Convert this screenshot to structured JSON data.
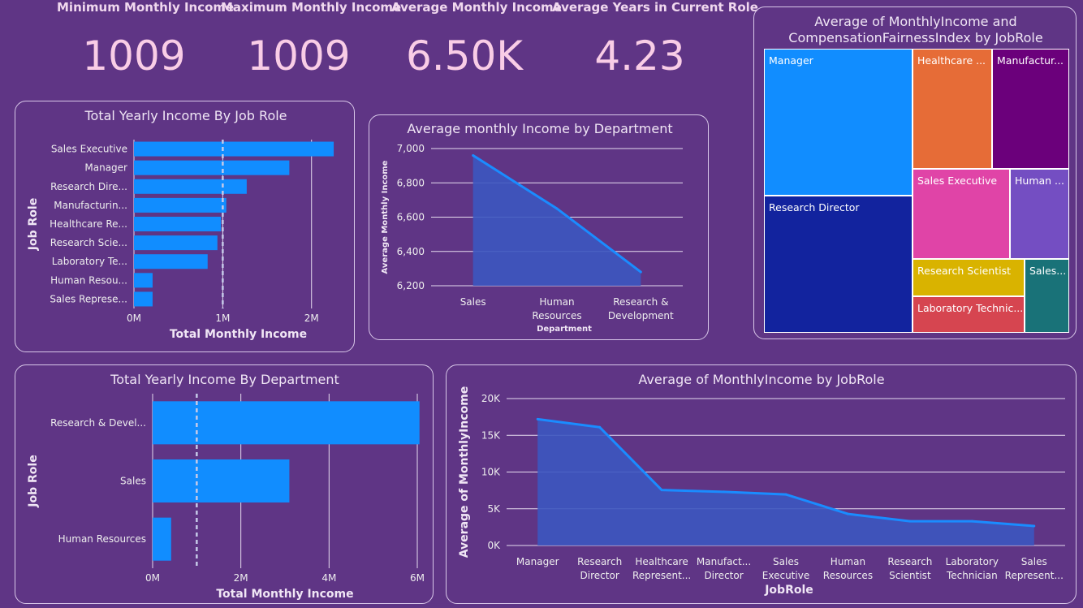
{
  "kpis": [
    {
      "label": "Minimum Monthly Income",
      "value": "1009"
    },
    {
      "label": "Maximum Monthly Income",
      "value": "1009"
    },
    {
      "label": "Average Monthly Income",
      "value": "6.50K"
    },
    {
      "label": "Average Years in Current Role",
      "value": "4.23"
    }
  ],
  "colors": {
    "bar": "#118dff",
    "line": "#1a8cff",
    "area": "#3c57c0",
    "grid": "#e6dcef",
    "dashed": "#c5c9e8",
    "background": "#5f3585"
  },
  "chart_data": [
    {
      "type": "bar",
      "title": "Total Yearly Income By Job Role",
      "xlabel": "Total Monthly Income",
      "ylabel": "Job Role",
      "categories": [
        "Sales Executive",
        "Manager",
        "Research Dire...",
        "Manufacturin...",
        "Healthcare Re...",
        "Research Scie...",
        "Laboratory Te...",
        "Human Resou...",
        "Sales Represe..."
      ],
      "values": [
        2250000,
        1750000,
        1270000,
        1040000,
        980000,
        940000,
        830000,
        210000,
        210000
      ],
      "xticks": [
        {
          "value": 0,
          "label": "0M"
        },
        {
          "value": 1000000,
          "label": "1M"
        },
        {
          "value": 2000000,
          "label": "2M"
        }
      ],
      "xlim": [
        0,
        2350000
      ],
      "average_line": 1000000,
      "grid": true
    },
    {
      "type": "area",
      "title": "Average monthly Income by Department",
      "xlabel": "Department",
      "ylabel": "Average Monthly Income",
      "categories": [
        "Sales",
        "Human Resources",
        "Research & Development"
      ],
      "values": [
        6960,
        6650,
        6280
      ],
      "yticks": [
        {
          "value": 6200,
          "label": "6,200"
        },
        {
          "value": 6400,
          "label": "6,400"
        },
        {
          "value": 6600,
          "label": "6,600"
        },
        {
          "value": 6800,
          "label": "6,800"
        },
        {
          "value": 7000,
          "label": "7,000"
        }
      ],
      "ylim": [
        6200,
        7000
      ],
      "grid": true
    },
    {
      "type": "treemap",
      "title": "Average of MonthlyIncome and CompensationFairnessIndex by JobRole",
      "items": [
        {
          "label": "Manager",
          "color": "#118dff"
        },
        {
          "label": "Research Director",
          "color": "#12239e"
        },
        {
          "label": "Healthcare ...",
          "color": "#e66c37"
        },
        {
          "label": "Manufactur...",
          "color": "#6b007b"
        },
        {
          "label": "Sales Executive",
          "color": "#e044a7"
        },
        {
          "label": "Human ...",
          "color": "#744ec2"
        },
        {
          "label": "Research Scientist",
          "color": "#d9b300"
        },
        {
          "label": "Laboratory Technic...",
          "color": "#d64550"
        },
        {
          "label": "Sales...",
          "color": "#197278"
        }
      ]
    },
    {
      "type": "bar",
      "title": "Total Yearly Income By Department",
      "xlabel": "Total Monthly Income",
      "ylabel": "Job Role",
      "categories": [
        "Research & Devel...",
        "Sales",
        "Human Resources"
      ],
      "values": [
        6050000,
        3100000,
        420000
      ],
      "xticks": [
        {
          "value": 0,
          "label": "0M"
        },
        {
          "value": 2000000,
          "label": "2M"
        },
        {
          "value": 4000000,
          "label": "4M"
        },
        {
          "value": 6000000,
          "label": "6M"
        }
      ],
      "xlim": [
        0,
        6000000
      ],
      "average_line": 1000000,
      "grid": true
    },
    {
      "type": "area",
      "title": "Average of MonthlyIncome by JobRole",
      "xlabel": "JobRole",
      "ylabel": "Average of MonthlyIncome",
      "categories": [
        [
          "Manager"
        ],
        [
          "Research",
          "Director"
        ],
        [
          "Healthcare",
          "Represent..."
        ],
        [
          "Manufact...",
          "Director"
        ],
        [
          "Sales",
          "Executive"
        ],
        [
          "Human",
          "Resources"
        ],
        [
          "Research",
          "Scientist"
        ],
        [
          "Laboratory",
          "Technician"
        ],
        [
          "Sales",
          "Represent..."
        ]
      ],
      "values": [
        17200,
        16100,
        7550,
        7300,
        6950,
        4300,
        3300,
        3300,
        2650
      ],
      "yticks": [
        {
          "value": 0,
          "label": "0K"
        },
        {
          "value": 5000,
          "label": "5K"
        },
        {
          "value": 10000,
          "label": "10K"
        },
        {
          "value": 15000,
          "label": "15K"
        },
        {
          "value": 20000,
          "label": "20K"
        }
      ],
      "ylim": [
        0,
        20000
      ],
      "grid": true
    }
  ]
}
